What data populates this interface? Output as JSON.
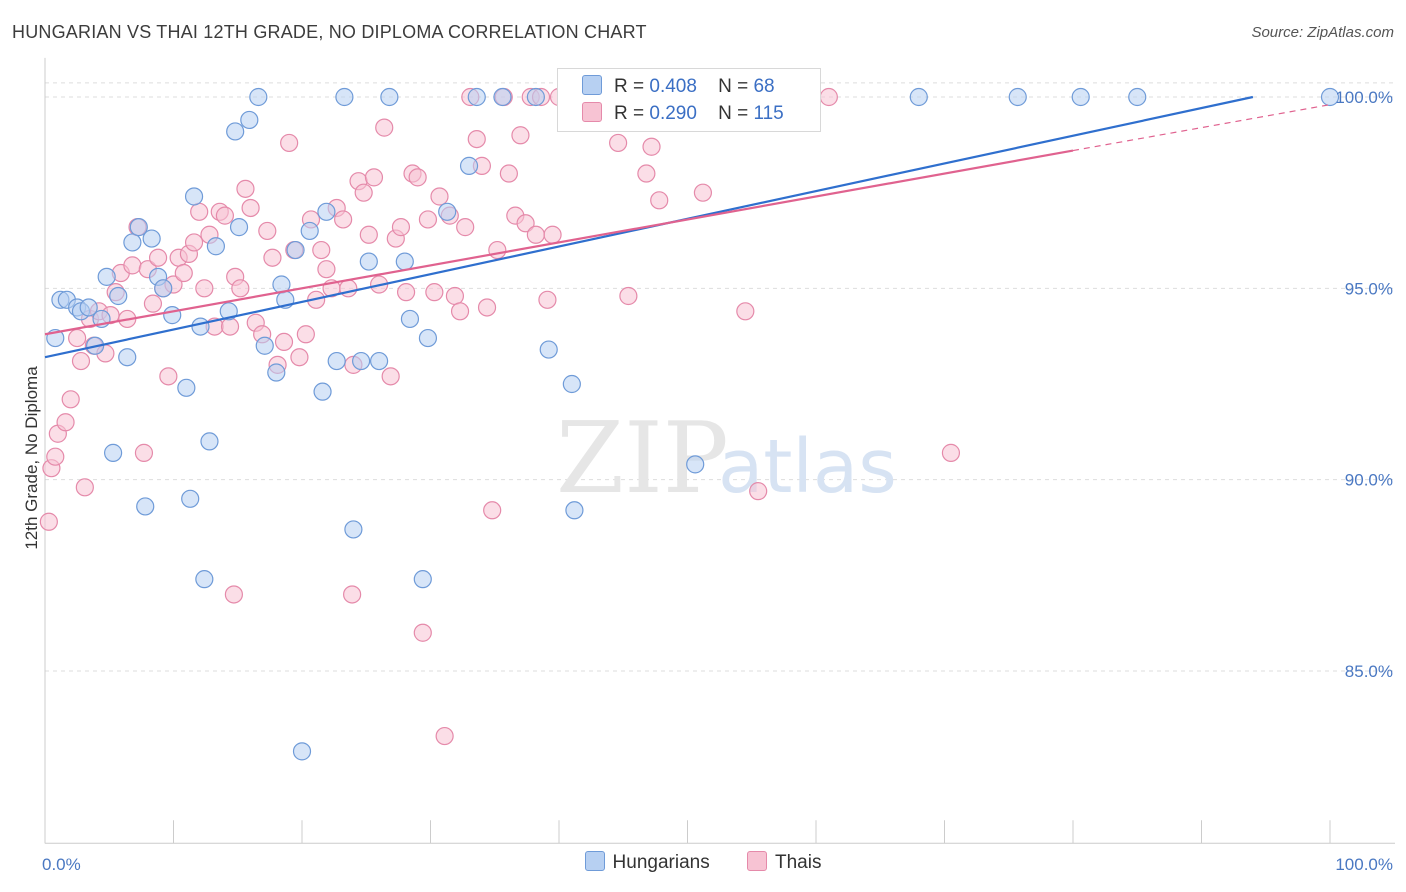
{
  "title": "HUNGARIAN VS THAI 12TH GRADE, NO DIPLOMA CORRELATION CHART",
  "source": "Source: ZipAtlas.com",
  "watermark": {
    "zip": "ZIP",
    "atlas": "atlas"
  },
  "legend": {
    "rows": [
      {
        "r_label": "R =",
        "r_value": "0.408",
        "n_label": "N =",
        "n_value": "68"
      },
      {
        "r_label": "R =",
        "r_value": "0.290",
        "n_label": "N =",
        "n_value": "115"
      }
    ]
  },
  "bottom_legend": {
    "hungarians": "Hungarians",
    "thais": "Thais"
  },
  "colors": {
    "hungarians_fill": "#b7d0f2",
    "hungarians_stroke": "#6f9bd8",
    "hungarians_line": "#2f6fce",
    "thais_fill": "#f7c3d3",
    "thais_stroke": "#e58aaa",
    "thais_line": "#e0628f",
    "tick_text": "#4a78c2",
    "grid": "#dddddd"
  },
  "chart_data": {
    "type": "scatter",
    "title": "HUNGARIAN VS THAI 12TH GRADE, NO DIPLOMA CORRELATION CHART",
    "xlabel": "",
    "ylabel": "12th Grade, No Diploma",
    "xlim": [
      0,
      100
    ],
    "ylim": [
      80.5,
      100.5
    ],
    "x_ticks": [
      "0.0%",
      "100.0%"
    ],
    "y_ticks": [
      {
        "value": 85,
        "label": "85.0%"
      },
      {
        "value": 90,
        "label": "90.0%"
      },
      {
        "value": 95,
        "label": "95.0%"
      },
      {
        "value": 100,
        "label": "100.0%"
      }
    ],
    "grid": true,
    "legend_position": "top-center",
    "series": [
      {
        "name": "Hungarians",
        "r": 0.408,
        "n": 68,
        "trend": {
          "x0": 0,
          "y0": 93.2,
          "x1": 94,
          "y1": 100
        },
        "points": [
          [
            0.8,
            93.7
          ],
          [
            1.2,
            94.7
          ],
          [
            1.7,
            94.7
          ],
          [
            2.5,
            94.5
          ],
          [
            2.8,
            94.4
          ],
          [
            3.4,
            94.5
          ],
          [
            3.9,
            93.5
          ],
          [
            4.4,
            94.2
          ],
          [
            4.8,
            95.3
          ],
          [
            5.3,
            90.7
          ],
          [
            5.7,
            94.8
          ],
          [
            6.4,
            93.2
          ],
          [
            6.8,
            96.2
          ],
          [
            7.3,
            96.6
          ],
          [
            7.8,
            89.3
          ],
          [
            8.3,
            96.3
          ],
          [
            8.8,
            95.3
          ],
          [
            9.2,
            95.0
          ],
          [
            9.9,
            94.3
          ],
          [
            11.0,
            92.4
          ],
          [
            11.3,
            89.5
          ],
          [
            11.6,
            97.4
          ],
          [
            12.1,
            94.0
          ],
          [
            12.4,
            87.4
          ],
          [
            12.8,
            91.0
          ],
          [
            13.3,
            96.1
          ],
          [
            14.3,
            94.4
          ],
          [
            14.8,
            99.1
          ],
          [
            15.1,
            96.6
          ],
          [
            15.9,
            99.4
          ],
          [
            16.6,
            100.0
          ],
          [
            17.1,
            93.5
          ],
          [
            18.0,
            92.8
          ],
          [
            18.4,
            95.1
          ],
          [
            18.7,
            94.7
          ],
          [
            19.5,
            96.0
          ],
          [
            20.0,
            82.9
          ],
          [
            20.6,
            96.5
          ],
          [
            21.6,
            92.3
          ],
          [
            21.9,
            97.0
          ],
          [
            22.7,
            93.1
          ],
          [
            23.3,
            100.0
          ],
          [
            24.0,
            88.7
          ],
          [
            24.6,
            93.1
          ],
          [
            25.2,
            95.7
          ],
          [
            26.0,
            93.1
          ],
          [
            26.8,
            100.0
          ],
          [
            28.0,
            95.7
          ],
          [
            28.4,
            94.2
          ],
          [
            29.4,
            87.4
          ],
          [
            29.8,
            93.7
          ],
          [
            31.3,
            97.0
          ],
          [
            33.0,
            98.2
          ],
          [
            33.6,
            100.0
          ],
          [
            35.6,
            100.0
          ],
          [
            38.2,
            100.0
          ],
          [
            39.2,
            93.4
          ],
          [
            41.0,
            92.5
          ],
          [
            41.2,
            89.2
          ],
          [
            47.0,
            100.0
          ],
          [
            50.6,
            90.4
          ],
          [
            53.2,
            100.0
          ],
          [
            57.2,
            100.0
          ],
          [
            68.0,
            100.0
          ],
          [
            75.7,
            100.0
          ],
          [
            80.6,
            100.0
          ],
          [
            85.0,
            100.0
          ],
          [
            100.0,
            100.0
          ]
        ]
      },
      {
        "name": "Thais",
        "r": 0.29,
        "n": 115,
        "trend": {
          "x0": 0,
          "y0": 93.8,
          "x1": 80,
          "y1": 98.6
        },
        "trend_dashed": {
          "x0": 80,
          "y0": 98.6,
          "x1": 100,
          "y1": 99.8
        },
        "points": [
          [
            0.3,
            88.9
          ],
          [
            0.5,
            90.3
          ],
          [
            0.8,
            90.6
          ],
          [
            1.0,
            91.2
          ],
          [
            1.6,
            91.5
          ],
          [
            2.0,
            92.1
          ],
          [
            2.5,
            93.7
          ],
          [
            2.8,
            93.1
          ],
          [
            3.1,
            89.8
          ],
          [
            3.5,
            94.2
          ],
          [
            3.8,
            93.5
          ],
          [
            4.2,
            94.4
          ],
          [
            4.7,
            93.3
          ],
          [
            5.1,
            94.3
          ],
          [
            5.5,
            94.9
          ],
          [
            5.9,
            95.4
          ],
          [
            6.4,
            94.2
          ],
          [
            6.8,
            95.6
          ],
          [
            7.2,
            96.6
          ],
          [
            7.7,
            90.7
          ],
          [
            8.0,
            95.5
          ],
          [
            8.4,
            94.6
          ],
          [
            8.8,
            95.8
          ],
          [
            9.2,
            95.0
          ],
          [
            9.6,
            92.7
          ],
          [
            10.0,
            95.1
          ],
          [
            10.4,
            95.8
          ],
          [
            10.8,
            95.4
          ],
          [
            11.2,
            95.9
          ],
          [
            11.6,
            96.2
          ],
          [
            12.0,
            97.0
          ],
          [
            12.4,
            95.0
          ],
          [
            12.8,
            96.4
          ],
          [
            13.2,
            94.0
          ],
          [
            13.6,
            97.0
          ],
          [
            14.0,
            96.9
          ],
          [
            14.4,
            94.0
          ],
          [
            14.8,
            95.3
          ],
          [
            15.2,
            95.0
          ],
          [
            15.6,
            97.6
          ],
          [
            16.0,
            97.1
          ],
          [
            16.4,
            94.1
          ],
          [
            16.9,
            93.8
          ],
          [
            17.3,
            96.5
          ],
          [
            17.7,
            95.8
          ],
          [
            18.1,
            93.0
          ],
          [
            18.6,
            93.6
          ],
          [
            19.0,
            98.8
          ],
          [
            19.4,
            96.0
          ],
          [
            19.8,
            93.2
          ],
          [
            20.3,
            93.8
          ],
          [
            20.7,
            96.8
          ],
          [
            21.1,
            94.7
          ],
          [
            21.5,
            96.0
          ],
          [
            21.9,
            95.5
          ],
          [
            22.3,
            95.0
          ],
          [
            22.7,
            97.1
          ],
          [
            23.2,
            96.8
          ],
          [
            23.6,
            95.0
          ],
          [
            24.0,
            93.0
          ],
          [
            24.4,
            97.8
          ],
          [
            24.8,
            97.5
          ],
          [
            25.2,
            96.4
          ],
          [
            25.6,
            97.9
          ],
          [
            26.0,
            95.1
          ],
          [
            26.4,
            99.2
          ],
          [
            26.9,
            92.7
          ],
          [
            27.3,
            96.3
          ],
          [
            27.7,
            96.6
          ],
          [
            28.1,
            94.9
          ],
          [
            28.6,
            98.0
          ],
          [
            29.0,
            97.9
          ],
          [
            29.4,
            86.0
          ],
          [
            29.8,
            96.8
          ],
          [
            30.3,
            94.9
          ],
          [
            30.7,
            97.4
          ],
          [
            31.1,
            83.3
          ],
          [
            31.5,
            96.9
          ],
          [
            31.9,
            94.8
          ],
          [
            32.3,
            94.4
          ],
          [
            32.7,
            96.6
          ],
          [
            33.1,
            100.0
          ],
          [
            33.6,
            98.9
          ],
          [
            34.0,
            98.2
          ],
          [
            34.4,
            94.5
          ],
          [
            34.8,
            89.2
          ],
          [
            35.2,
            96.0
          ],
          [
            35.7,
            100.0
          ],
          [
            36.1,
            98.0
          ],
          [
            36.6,
            96.9
          ],
          [
            37.0,
            99.0
          ],
          [
            37.4,
            96.7
          ],
          [
            37.8,
            100.0
          ],
          [
            38.2,
            96.4
          ],
          [
            38.6,
            100.0
          ],
          [
            39.1,
            94.7
          ],
          [
            39.5,
            96.4
          ],
          [
            40.0,
            100.0
          ],
          [
            14.7,
            87.0
          ],
          [
            23.9,
            87.0
          ],
          [
            44.6,
            98.8
          ],
          [
            45.0,
            100.0
          ],
          [
            45.4,
            94.8
          ],
          [
            46.0,
            100.0
          ],
          [
            46.8,
            98.0
          ],
          [
            47.2,
            98.7
          ],
          [
            47.8,
            97.3
          ],
          [
            50.0,
            100.0
          ],
          [
            51.2,
            97.5
          ],
          [
            54.5,
            94.4
          ],
          [
            55.5,
            89.7
          ],
          [
            70.5,
            90.7
          ],
          [
            55.0,
            100.0
          ],
          [
            61.0,
            100.0
          ],
          [
            53.0,
            100.0
          ]
        ]
      }
    ]
  }
}
